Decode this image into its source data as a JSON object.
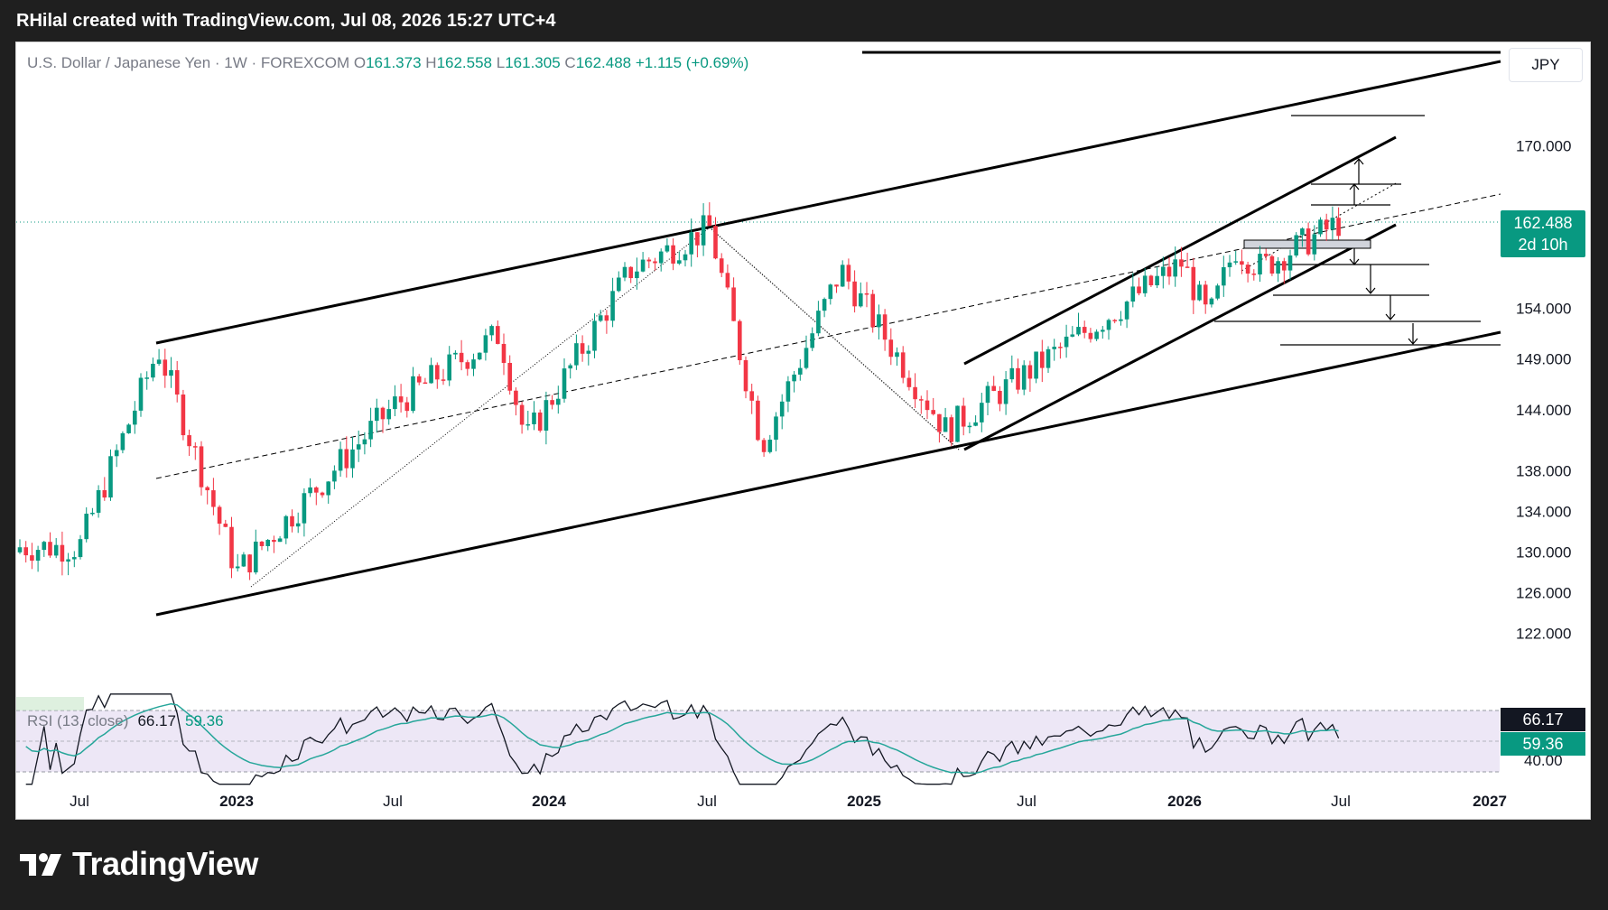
{
  "header": {
    "caption": "RHilal created with TradingView.com, Jul 08, 2026 15:27 UTC+4"
  },
  "legend": {
    "symbol": "U.S. Dollar / Japanese Yen · 1W · FOREXCOM",
    "o_label": "O",
    "o": "161.373",
    "h_label": "H",
    "h": "162.558",
    "l_label": "L",
    "l": "161.305",
    "c_label": "C",
    "c": "162.488",
    "change": "+1.115 (+0.69%)"
  },
  "currency_button": "JPY",
  "price_tag": {
    "price": "162.488",
    "countdown": "2d 10h"
  },
  "rsi": {
    "label": "RSI (13, close)",
    "value": "66.17",
    "ma_value": "59.36",
    "tag_value": "66.17",
    "tag_ma": "59.36",
    "lower_tick": "40.00"
  },
  "brand": {
    "name": "TradingView"
  },
  "colors": {
    "up": "#089981",
    "down": "#f23645",
    "rsi_band": "#ede7f6",
    "rsi_line": "#131722",
    "rsi_ma": "#26a69a",
    "background": "#ffffff"
  },
  "chart_data": {
    "type": "candlestick",
    "title": "U.S. Dollar / Japanese Yen · 1W · FOREXCOM",
    "yaxis_ticks": [
      "170.000",
      "154.000",
      "149.000",
      "144.000",
      "138.000",
      "134.000",
      "130.000",
      "126.000",
      "122.000"
    ],
    "xaxis_ticks": [
      "Jul",
      "2023",
      "Jul",
      "2024",
      "Jul",
      "2025",
      "Jul",
      "2026",
      "Jul",
      "2027"
    ],
    "last_price": 162.488,
    "approx_path": [
      {
        "x": "Jul 2022",
        "y": 130.5
      },
      {
        "x": "Oct 2022",
        "y": 150.0
      },
      {
        "x": "Jan 2023",
        "y": 128.0
      },
      {
        "x": "Jul 2023",
        "y": 144.5
      },
      {
        "x": "Nov 2023",
        "y": 151.5
      },
      {
        "x": "Dec 2023",
        "y": 141.0
      },
      {
        "x": "Apr 2024",
        "y": 157.8
      },
      {
        "x": "Jul 2024",
        "y": 161.9
      },
      {
        "x": "Sep 2024",
        "y": 140.6
      },
      {
        "x": "Dec 2024",
        "y": 157.8
      },
      {
        "x": "Apr 2025",
        "y": 142.0
      },
      {
        "x": "Jul 2025",
        "y": 147.5
      },
      {
        "x": "Jan 2026",
        "y": 158.5
      },
      {
        "x": "Feb 2026",
        "y": 152.8
      },
      {
        "x": "Mar 2026",
        "y": 160.0
      },
      {
        "x": "Apr 2026",
        "y": 158.0
      },
      {
        "x": "Jul 2026",
        "y": 162.488
      }
    ],
    "rsi_series": {
      "name": "RSI (13, close)",
      "last": 66.17,
      "ma_last": 59.36
    }
  }
}
